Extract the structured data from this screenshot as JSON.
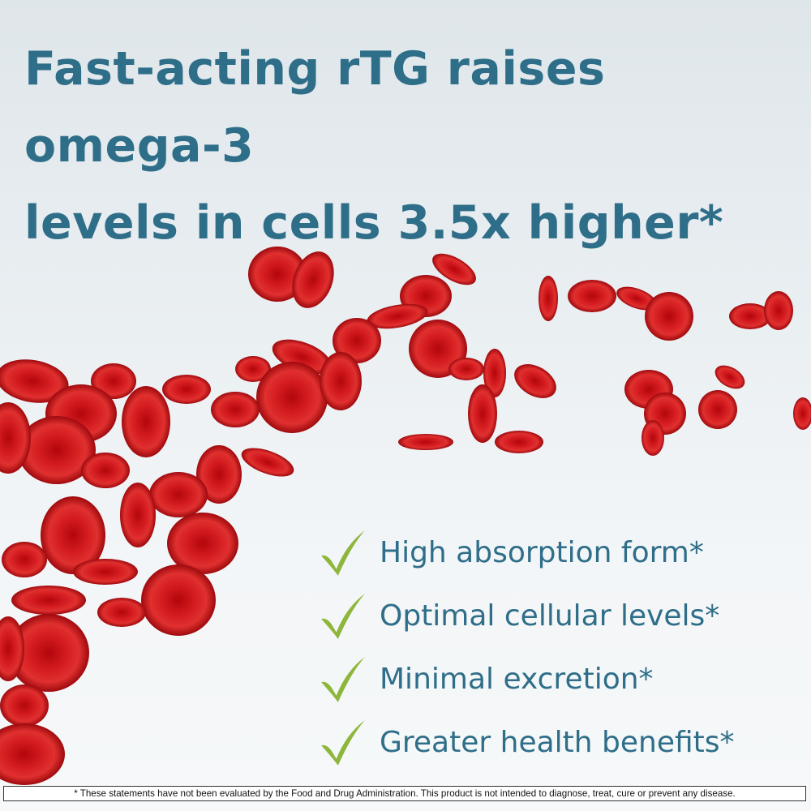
{
  "headline": {
    "line1": "Fast-acting rTG raises omega-3",
    "line2": "levels in cells 3.5x higher*"
  },
  "benefits": [
    {
      "label": "High absorption form*",
      "icon": "check-icon"
    },
    {
      "label": "Optimal cellular levels*",
      "icon": "check-icon"
    },
    {
      "label": "Minimal excretion*",
      "icon": "check-icon"
    },
    {
      "label": "Greater health benefits*",
      "icon": "check-icon"
    }
  ],
  "disclaimer": "* These statements have not been evaluated by the Food and Drug Administration. This product is not intended to diagnose, treat, cure or prevent any disease.",
  "colors": {
    "headline": "#2f6e89",
    "check": "#8db63a",
    "cell": "#c8161b"
  }
}
